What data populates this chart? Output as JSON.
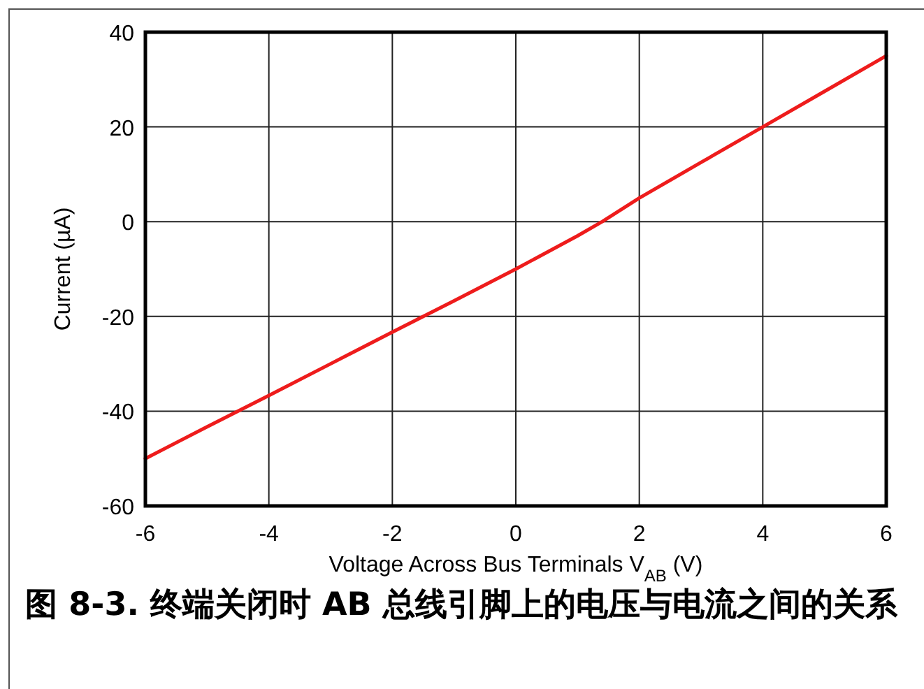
{
  "chart_data": {
    "type": "line",
    "title": "图 8-3. 终端关闭时 AB 总线引脚上的电压与电流之间的关系",
    "xlabel": "Voltage Across Bus Terminals V$_{AB}$ (V)",
    "ylabel": "Current (µA)",
    "x": [
      -6,
      -5,
      -4,
      -3,
      -2,
      -1,
      0,
      1,
      1.4,
      2,
      3,
      4,
      5,
      6
    ],
    "series": [
      {
        "color": "#ee1c1c",
        "values": [
          -50,
          -43.3,
          -36.7,
          -30,
          -23.3,
          -16.7,
          -10,
          -3,
          0,
          5,
          12.5,
          20,
          27.5,
          35
        ]
      }
    ],
    "xlim": [
      -6,
      6
    ],
    "ylim": [
      -60,
      40
    ],
    "xticks": [
      -6,
      -4,
      -2,
      0,
      2,
      4,
      6
    ],
    "yticks": [
      -60,
      -40,
      -20,
      0,
      20,
      40
    ],
    "grid": true,
    "marker": "none",
    "line_style": "solid"
  }
}
